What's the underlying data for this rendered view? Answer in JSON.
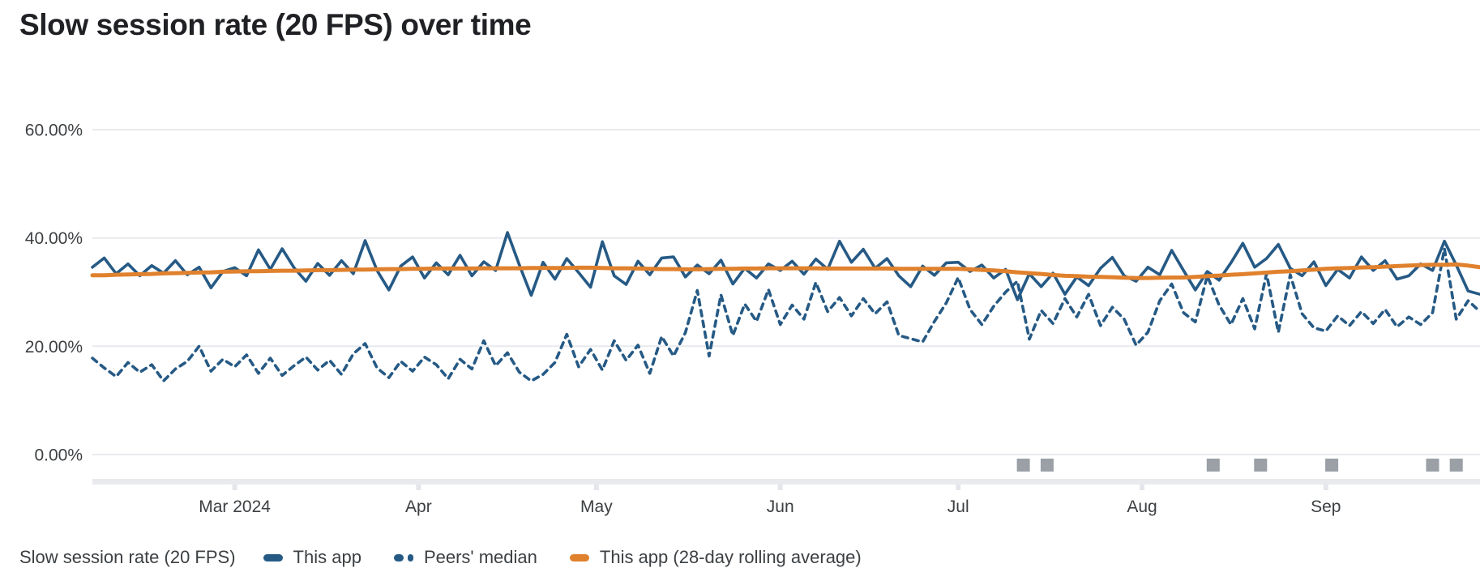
{
  "title": "Slow session rate (20 FPS) over time",
  "legend": {
    "caption": "Slow session rate (20 FPS)"
  },
  "colors": {
    "grid": "#e8eaed",
    "axis_bar": "#e8eaed",
    "axis_tick": "#e3e6ea",
    "axis_text": "#3c4043",
    "title_text": "#202124",
    "event_marker": "#9aa0a6"
  },
  "chart_data": {
    "type": "line",
    "title": "Slow session rate (20 FPS) over time",
    "x_start_date": "2024-02-06",
    "x_end_date": "2024-09-27",
    "sample_interval_days": 2,
    "grid": "horizontal",
    "legend_position": "bottom",
    "y_axis": {
      "range": [
        0,
        60
      ],
      "ticks": [
        {
          "label": "0.00%",
          "value": 0
        },
        {
          "label": "20.00%",
          "value": 20
        },
        {
          "label": "40.00%",
          "value": 40
        },
        {
          "label": "60.00%",
          "value": 60
        }
      ]
    },
    "x_axis": {
      "ticks": [
        {
          "label": "Mar 2024",
          "date": "2024-03-01"
        },
        {
          "label": "Apr",
          "date": "2024-04-01"
        },
        {
          "label": "May",
          "date": "2024-05-01"
        },
        {
          "label": "Jun",
          "date": "2024-06-01"
        },
        {
          "label": "Jul",
          "date": "2024-07-01"
        },
        {
          "label": "Aug",
          "date": "2024-08-01"
        },
        {
          "label": "Sep",
          "date": "2024-09-01"
        }
      ]
    },
    "series": [
      {
        "name": "This app",
        "line_style": "solid",
        "color": "#265a85",
        "values": [
          34.6,
          36.3,
          33.4,
          35.2,
          33.0,
          34.9,
          33.5,
          35.8,
          33.2,
          34.6,
          30.8,
          33.8,
          34.5,
          33.0,
          37.8,
          34.2,
          38.0,
          34.5,
          32.0,
          35.3,
          33.1,
          35.8,
          33.4,
          39.5,
          34.0,
          30.4,
          34.8,
          36.5,
          32.6,
          35.4,
          33.2,
          36.8,
          33.0,
          35.6,
          34.0,
          41.0,
          35.0,
          29.4,
          35.5,
          32.4,
          36.2,
          33.6,
          30.9,
          39.3,
          33.0,
          31.4,
          35.7,
          33.2,
          36.3,
          36.5,
          32.8,
          35.0,
          33.4,
          35.9,
          31.5,
          34.4,
          32.6,
          35.2,
          34.0,
          35.7,
          33.3,
          36.1,
          34.2,
          39.4,
          35.5,
          37.9,
          34.4,
          36.2,
          33.0,
          31.0,
          34.8,
          33.1,
          35.4,
          35.5,
          33.8,
          35.0,
          32.6,
          34.2,
          28.6,
          33.4,
          31.0,
          33.5,
          29.6,
          32.8,
          31.2,
          34.4,
          36.4,
          33.0,
          32.0,
          34.6,
          33.2,
          37.7,
          34.0,
          30.4,
          33.8,
          32.2,
          35.4,
          39.0,
          34.6,
          36.2,
          38.8,
          34.4,
          33.0,
          35.6,
          31.2,
          34.2,
          32.6,
          36.5,
          34.0,
          35.8,
          32.4,
          33.0,
          35.2,
          34.0,
          39.4,
          35.0,
          30.2,
          29.6
        ]
      },
      {
        "name": "Peers' median",
        "line_style": "dashed",
        "color": "#265a85",
        "values": [
          17.8,
          16.0,
          14.4,
          17.0,
          15.2,
          16.6,
          13.6,
          15.8,
          17.2,
          20.0,
          15.4,
          17.6,
          16.2,
          18.4,
          15.0,
          17.8,
          14.6,
          16.4,
          18.0,
          15.6,
          17.4,
          14.8,
          18.6,
          20.5,
          16.0,
          14.2,
          17.2,
          15.4,
          18.0,
          16.6,
          14.0,
          17.6,
          15.8,
          21.0,
          16.4,
          18.8,
          15.2,
          13.6,
          14.8,
          17.0,
          22.2,
          16.2,
          19.4,
          15.6,
          21.0,
          17.4,
          20.2,
          15.0,
          21.8,
          18.2,
          22.5,
          30.3,
          18.2,
          29.5,
          22.0,
          27.8,
          24.6,
          30.5,
          24.0,
          27.6,
          25.0,
          31.8,
          26.4,
          29.0,
          25.6,
          28.8,
          26.0,
          28.2,
          22.0,
          21.4,
          20.8,
          24.6,
          28.0,
          32.7,
          26.8,
          24.0,
          27.4,
          30.0,
          32.0,
          21.3,
          26.6,
          24.2,
          28.8,
          25.4,
          29.6,
          23.8,
          27.2,
          25.0,
          20.2,
          22.6,
          28.4,
          31.5,
          26.2,
          24.5,
          33.0,
          27.6,
          24.0,
          28.8,
          23.2,
          33.4,
          22.6,
          33.2,
          26.0,
          23.4,
          22.8,
          25.6,
          23.8,
          26.4,
          24.2,
          26.8,
          23.6,
          25.4,
          24.0,
          26.2,
          38.0,
          25.0,
          28.4,
          26.4
        ]
      },
      {
        "name": "This app (28-day rolling average)",
        "line_style": "solid",
        "color": "#e0812d",
        "values": [
          33.1,
          33.1,
          33.2,
          33.25,
          33.3,
          33.35,
          33.45,
          33.5,
          33.55,
          33.6,
          33.65,
          33.75,
          33.8,
          33.85,
          33.85,
          33.9,
          33.95,
          33.95,
          34.0,
          34.05,
          34.05,
          34.1,
          34.15,
          34.15,
          34.2,
          34.25,
          34.25,
          34.3,
          34.3,
          34.35,
          34.35,
          34.35,
          34.35,
          34.4,
          34.4,
          34.4,
          34.4,
          34.45,
          34.45,
          34.45,
          34.45,
          34.5,
          34.5,
          34.45,
          34.4,
          34.4,
          34.35,
          34.3,
          34.25,
          34.25,
          34.2,
          34.2,
          34.25,
          34.3,
          34.3,
          34.35,
          34.35,
          34.4,
          34.4,
          34.4,
          34.4,
          34.4,
          34.35,
          34.35,
          34.35,
          34.35,
          34.35,
          34.35,
          34.3,
          34.3,
          34.3,
          34.3,
          34.3,
          34.3,
          34.2,
          34.1,
          34.0,
          33.85,
          33.65,
          33.5,
          33.35,
          33.15,
          33.0,
          32.95,
          32.85,
          32.8,
          32.75,
          32.65,
          32.6,
          32.6,
          32.65,
          32.7,
          32.7,
          32.8,
          32.95,
          33.05,
          33.2,
          33.3,
          33.45,
          33.6,
          33.75,
          33.85,
          34.0,
          34.15,
          34.3,
          34.4,
          34.45,
          34.55,
          34.6,
          34.7,
          34.8,
          34.9,
          35.0,
          35.05,
          35.05,
          35.1,
          34.9,
          34.6
        ]
      }
    ],
    "event_markers": {
      "shape": "square",
      "dates": [
        "2024-07-12",
        "2024-07-16",
        "2024-08-13",
        "2024-08-21",
        "2024-09-02",
        "2024-09-19",
        "2024-09-23"
      ]
    }
  }
}
